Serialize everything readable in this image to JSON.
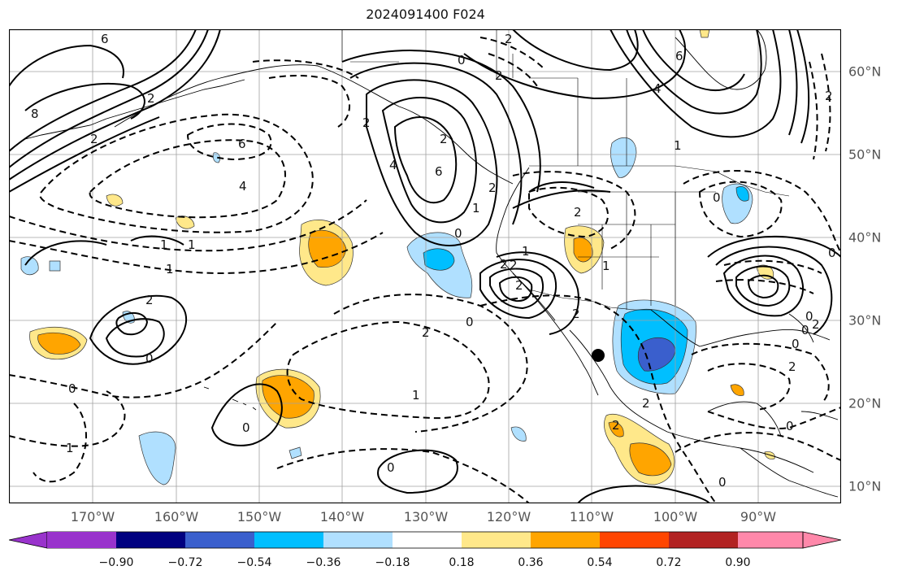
{
  "title": "2024091400 F024",
  "lon_labels": [
    "170°W",
    "160°W",
    "150°W",
    "140°W",
    "130°W",
    "120°W",
    "110°W",
    "100°W",
    "90°W"
  ],
  "lat_labels": [
    "60°N",
    "50°N",
    "40°N",
    "30°N",
    "20°N",
    "10°N"
  ],
  "colorbar": {
    "ticks": [
      "−0.90",
      "−0.72",
      "−0.54",
      "−0.36",
      "−0.18",
      "0.18",
      "0.36",
      "0.54",
      "0.72",
      "0.90"
    ],
    "colors": [
      "#9933cc",
      "#000080",
      "#3a5fcd",
      "#00bfff",
      "#b0e0ff",
      "#ffffff",
      "#ffe88a",
      "#ffa500",
      "#ff4500",
      "#b22222",
      "#ff88aa"
    ]
  },
  "contour_labels": [
    "6",
    "8",
    "6",
    "4",
    "2",
    "2",
    "6",
    "4",
    "2",
    "2",
    "6",
    "4",
    "2",
    "2",
    "1",
    "1",
    "2",
    "1",
    "2",
    "2",
    "0",
    "0",
    "0",
    "0",
    "1",
    "2",
    "1",
    "2",
    "1",
    "2",
    "2",
    "0",
    "0",
    "0",
    "0",
    "2",
    "2",
    "0",
    "2",
    "2",
    "2",
    "0",
    "1",
    "0",
    "1",
    "0",
    "0",
    "1",
    "2",
    "0"
  ],
  "colors": {
    "land": "#000000",
    "grid": "#a0a0a0",
    "text": "#555555"
  }
}
